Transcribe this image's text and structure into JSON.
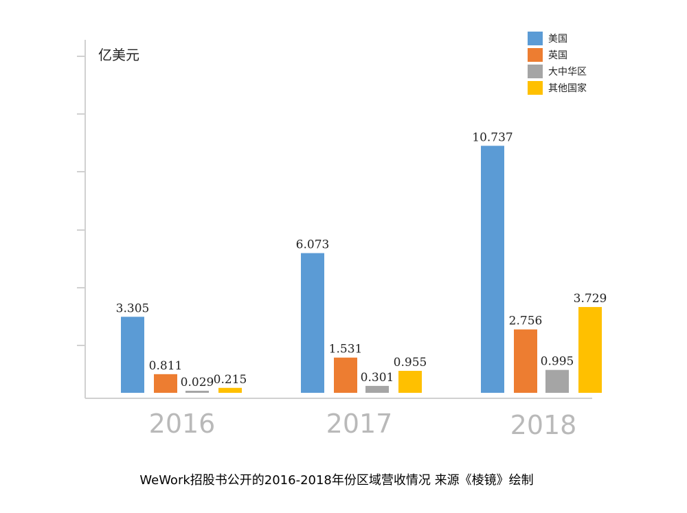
{
  "chart_data": {
    "type": "bar",
    "ylabel": "亿美元",
    "ylim": [
      0,
      12
    ],
    "categories": [
      "2016",
      "2017",
      "2018"
    ],
    "series": [
      {
        "name": "美国",
        "color": "#5b9bd5",
        "values": [
          3.305,
          6.073,
          10.737
        ]
      },
      {
        "name": "英国",
        "color": "#ed7d31",
        "values": [
          0.811,
          1.531,
          2.756
        ]
      },
      {
        "name": "大中华区",
        "color": "#a5a5a5",
        "values": [
          0.029,
          0.301,
          0.995
        ]
      },
      {
        "name": "其他国家",
        "color": "#ffc000",
        "values": [
          0.215,
          0.955,
          3.729
        ]
      }
    ],
    "labels": [
      [
        "3.305",
        "6.073",
        "10.737"
      ],
      [
        "0.811",
        "1.531",
        "2.756"
      ],
      [
        "0.029",
        "0.301",
        "0.995"
      ],
      [
        "0.215",
        "0.955",
        "3.729"
      ]
    ],
    "legend_position": "top-right",
    "caption": "WeWork招股书公开的2016-2018年份区域营收情况  来源《棱镜》绘制"
  }
}
